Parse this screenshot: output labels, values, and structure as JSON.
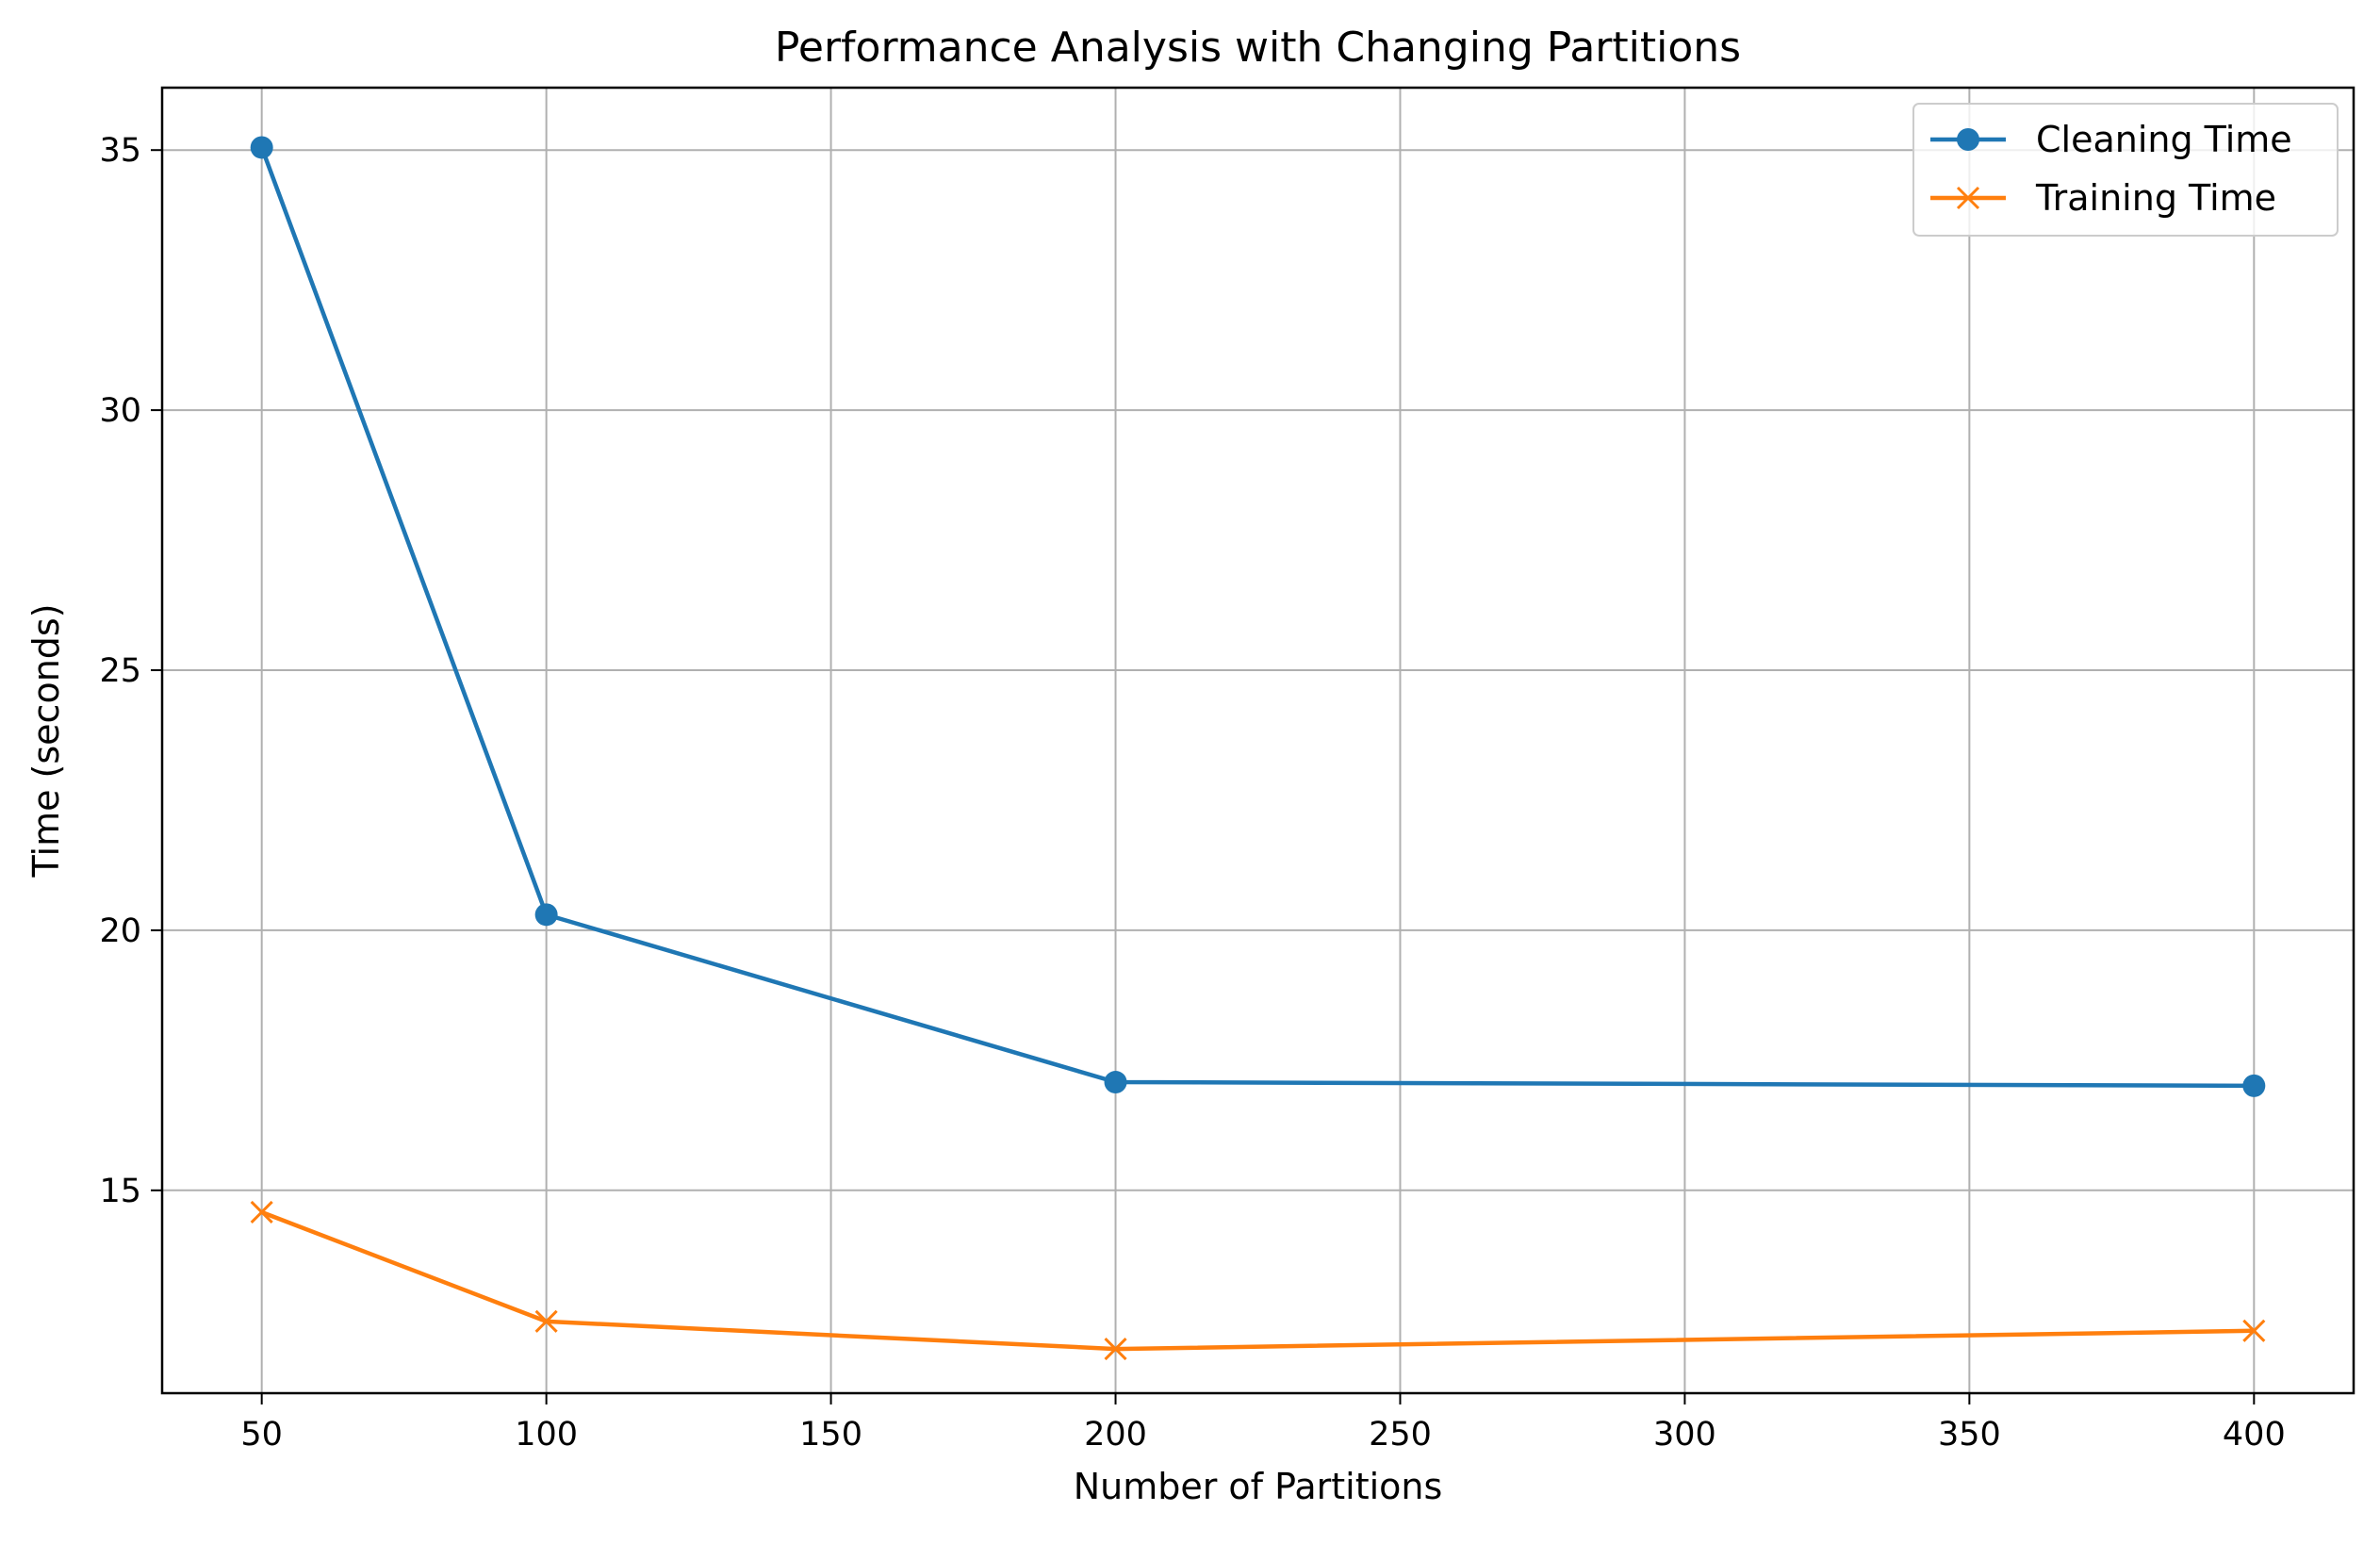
{
  "chart_data": {
    "type": "line",
    "title": "Performance Analysis with Changing Partitions",
    "xlabel": "Number of Partitions",
    "ylabel": "Time (seconds)",
    "x": [
      50,
      100,
      200,
      400
    ],
    "xlim": [
      32.5,
      417.5
    ],
    "ylim": [
      11.1,
      36.2
    ],
    "xticks": [
      50,
      100,
      150,
      200,
      250,
      300,
      350,
      400
    ],
    "yticks": [
      15,
      20,
      25,
      30,
      35
    ],
    "grid": true,
    "legend_position": "top-right",
    "series": [
      {
        "name": "Cleaning Time",
        "values": [
          35.05,
          20.3,
          17.08,
          17.01
        ],
        "color": "#1f77b4",
        "marker": "circle"
      },
      {
        "name": "Training Time",
        "values": [
          14.58,
          12.48,
          11.95,
          12.3
        ],
        "color": "#ff7f0e",
        "marker": "x"
      }
    ]
  }
}
